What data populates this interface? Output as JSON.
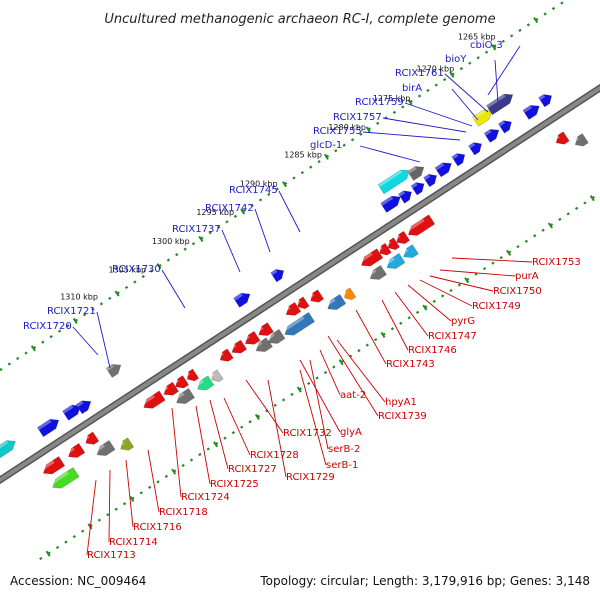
{
  "title": "Uncultured methanogenic archaeon RC-I, complete genome",
  "footer": {
    "accession": "Accession: NC_009464",
    "topology": "Topology: circular; Length: 3,179,916 bp; Genes: 3,148"
  },
  "colors": {
    "background": "#ffffff",
    "backbone": "#888888",
    "tick": "#228B22",
    "forward_label": "#1a1acc",
    "reverse_label": "#cc0000",
    "forward_gene": "#1010e0",
    "reverse_gene": "#e01010",
    "other_gene": "#707070"
  },
  "ticks": [
    "1265 kbp",
    "1270 kbp",
    "1275 kbp",
    "1280 kbp",
    "1285 kbp",
    "1290 kbp",
    "1295 kbp",
    "1300 kbp",
    "1305 kbp",
    "1310 kbp"
  ],
  "forward_labels": [
    "cbiO-3",
    "bioY",
    "RCIX1761",
    "birA",
    "RCIX1759",
    "RCIX1757",
    "RCIX1755",
    "glcD-1",
    "RCIX1745",
    "RCIX1742",
    "RCIX1737",
    "RCIX1730",
    "RCIX1721",
    "RCIX1720"
  ],
  "reverse_labels": [
    "RCIX1753",
    "purA",
    "RCIX1750",
    "RCIX1749",
    "pyrG",
    "RCIX1747",
    "RCIX1746",
    "RCIX1743",
    "aat-2",
    "hpyA1",
    "RCIX1739",
    "glyA",
    "RCIX1732",
    "serB-2",
    "serB-1",
    "RCIX1729",
    "RCIX1728",
    "RCIX1727",
    "RCIX1725",
    "RCIX1724",
    "RCIX1718",
    "RCIX1716",
    "RCIX1714",
    "RCIX1713"
  ]
}
